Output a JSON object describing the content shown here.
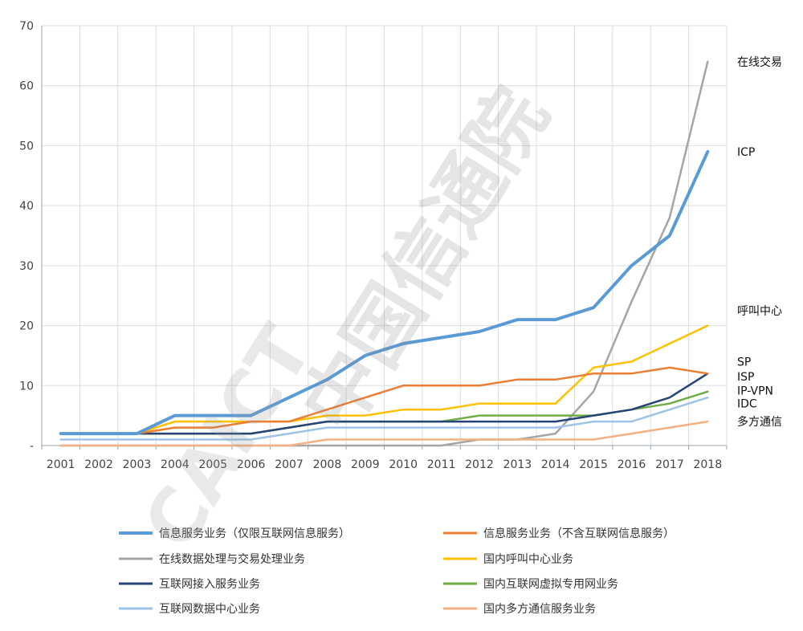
{
  "chart_data": {
    "type": "line",
    "x": [
      "2001",
      "2002",
      "2003",
      "2004",
      "2005",
      "2006",
      "2007",
      "2008",
      "2009",
      "2010",
      "2011",
      "2012",
      "2013",
      "2014",
      "2015",
      "2016",
      "2017",
      "2018"
    ],
    "ylim": [
      0,
      70
    ],
    "y_ticks": [
      "-",
      "10",
      "20",
      "30",
      "40",
      "50",
      "60",
      "70"
    ],
    "grid": true,
    "legend_position": "bottom",
    "series": [
      {
        "name": "信息服务业务（仅限互联网信息服务）",
        "color": "#5b9bd5",
        "values": [
          2,
          2,
          2,
          5,
          5,
          5,
          8,
          11,
          15,
          17,
          18,
          19,
          21,
          21,
          23,
          30,
          35,
          49
        ]
      },
      {
        "name": "信息服务业务（不含互联网信息服务）",
        "color": "#ed7d31",
        "values": [
          2,
          2,
          2,
          3,
          3,
          4,
          4,
          6,
          8,
          10,
          10,
          10,
          11,
          11,
          12,
          12,
          13,
          12
        ]
      },
      {
        "name": "在线数据处理与交易处理业务",
        "color": "#a5a5a5",
        "values": [
          0,
          0,
          0,
          0,
          0,
          0,
          0,
          0,
          0,
          0,
          0,
          1,
          1,
          2,
          9,
          24,
          38,
          64
        ]
      },
      {
        "name": "国内呼叫中心业务",
        "color": "#ffc000",
        "values": [
          2,
          2,
          2,
          4,
          4,
          4,
          4,
          5,
          5,
          6,
          6,
          7,
          7,
          7,
          13,
          14,
          17,
          20
        ]
      },
      {
        "name": "互联网接入服务业务",
        "color": "#264478",
        "values": [
          2,
          2,
          2,
          2,
          2,
          2,
          3,
          4,
          4,
          4,
          4,
          4,
          4,
          4,
          5,
          6,
          8,
          12
        ]
      },
      {
        "name": "国内互联网虚拟专用网业务",
        "color": "#70ad47",
        "values": [
          2,
          2,
          2,
          2,
          2,
          2,
          3,
          4,
          4,
          4,
          4,
          5,
          5,
          5,
          5,
          6,
          7,
          9
        ]
      },
      {
        "name": "互联网数据中心业务",
        "color": "#9dc3e6",
        "values": [
          1,
          1,
          1,
          1,
          1,
          1,
          2,
          3,
          3,
          3,
          3,
          3,
          3,
          3,
          4,
          4,
          6,
          8
        ]
      },
      {
        "name": "国内多方通信服务业务",
        "color": "#f4b183",
        "values": [
          0,
          0,
          0,
          0,
          0,
          0,
          0,
          1,
          1,
          1,
          1,
          1,
          1,
          1,
          1,
          2,
          3,
          4
        ]
      }
    ],
    "right_labels": [
      {
        "text": "在线交易",
        "value": 64
      },
      {
        "text": "ICP",
        "value": 49
      },
      {
        "text": "呼叫中心",
        "value": 22.5
      },
      {
        "text": "SP",
        "value": 14
      },
      {
        "text": "ISP",
        "value": 11.5
      },
      {
        "text": "IP-VPN",
        "value": 9.2
      },
      {
        "text": "IDC",
        "value": 7
      },
      {
        "text": "多方通信",
        "value": 4
      }
    ]
  },
  "watermark": {
    "text_cn": "中国信通院",
    "text_en": "CAICT"
  }
}
